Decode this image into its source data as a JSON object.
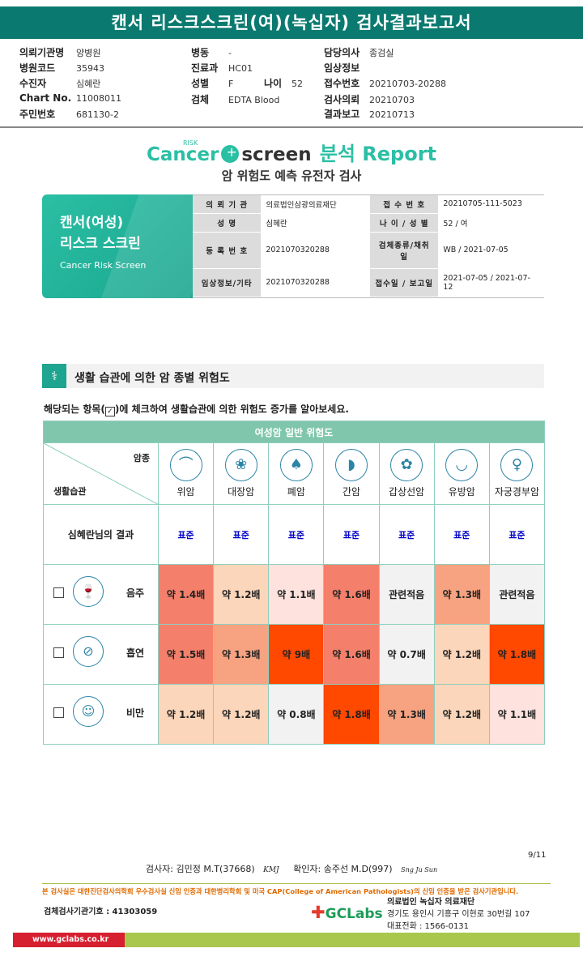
{
  "header": {
    "title": "캔서 리스크스크린(여)(녹십자) 검사결과보고서"
  },
  "info": {
    "col1": [
      {
        "label": "의뢰기관명",
        "value": "양병원"
      },
      {
        "label": "병원코드",
        "value": "35943"
      },
      {
        "label": "수진자",
        "value": "심혜란"
      },
      {
        "label": "Chart No.",
        "value": "11008011"
      },
      {
        "label": "주민번호",
        "value": "681130-2"
      }
    ],
    "col2": [
      {
        "label": "병동",
        "value": "-"
      },
      {
        "label": "진료과",
        "value": "HC01"
      },
      {
        "label": "성별",
        "value": "F"
      },
      {
        "label": "검체",
        "value": "EDTA Blood"
      }
    ],
    "age": {
      "label": "나이",
      "value": "52"
    },
    "col3": [
      {
        "label": "담당의사",
        "value": "종검실"
      },
      {
        "label": "임상정보",
        "value": ""
      },
      {
        "label": "접수번호",
        "value": "20210703-20288"
      },
      {
        "label": "검사의뢰",
        "value": "20210703"
      },
      {
        "label": "결과보고",
        "value": "20210713"
      }
    ]
  },
  "report": {
    "logo_cancer": "Cancer",
    "logo_risk": "RISK",
    "logo_screen": "screen",
    "logo_report": "분석 Report",
    "subtitle": "암 위험도 예측 유전자 검사",
    "card_line1": "캔서(여성)",
    "card_line2": "리스크 스크린",
    "card_line3": "Cancer Risk Screen"
  },
  "patient_table": [
    {
      "k1": "의 뢰 기 관",
      "v1": "의료법인삼광의료재단",
      "k2": "접 수 번 호",
      "v2": "20210705-111-5023"
    },
    {
      "k1": "성          명",
      "v1": "심혜란",
      "k2": "나 이 / 성 별",
      "v2": "52 / 여"
    },
    {
      "k1": "등 록 번 호",
      "v1": "2021070320288",
      "k2": "검체종류/채취일",
      "v2": "WB / 2021-07-05"
    },
    {
      "k1": "임상정보/기타",
      "v1": "2021070320288",
      "k2": "접수일 / 보고일",
      "v2": "2021-07-05 / 2021-07-12"
    }
  ],
  "section": {
    "title": "생활 습관에 의한 암 종별 위험도",
    "instruction_pre": "해당되는 항목(",
    "instruction_check": "✓",
    "instruction_post": ")에 체크하여 생활습관에 의한 위험도 증가를 알아보세요."
  },
  "grid": {
    "header": "여성암 일반 위험도",
    "corner_top": "암종",
    "corner_bottom": "생활습관",
    "cancers": [
      {
        "name": "위암",
        "icon": "stomach-icon",
        "glyph": "⌒"
      },
      {
        "name": "대장암",
        "icon": "colon-icon",
        "glyph": "❀"
      },
      {
        "name": "폐암",
        "icon": "lung-icon",
        "glyph": "♠"
      },
      {
        "name": "간암",
        "icon": "liver-icon",
        "glyph": "◗"
      },
      {
        "name": "갑상선암",
        "icon": "thyroid-icon",
        "glyph": "✿"
      },
      {
        "name": "유방암",
        "icon": "breast-icon",
        "glyph": "◡"
      },
      {
        "name": "자궁경부암",
        "icon": "uterus-icon",
        "glyph": "♀"
      }
    ],
    "result_label": "심혜란님의 결과",
    "results": [
      "표준",
      "표준",
      "표준",
      "표준",
      "표준",
      "표준",
      "표준"
    ],
    "habits": [
      {
        "name": "음주",
        "icon": "alcohol-icon",
        "glyph": "🍷",
        "cells": [
          {
            "text": "약 1.4배",
            "level": "lv4"
          },
          {
            "text": "약 1.2배",
            "level": "lv2"
          },
          {
            "text": "약 1.1배",
            "level": "lv1"
          },
          {
            "text": "약 1.6배",
            "level": "lv4"
          },
          {
            "text": "관련적음",
            "level": "lvn"
          },
          {
            "text": "약 1.3배",
            "level": "lv3"
          },
          {
            "text": "관련적음",
            "level": "lvn"
          }
        ]
      },
      {
        "name": "흡연",
        "icon": "smoking-icon",
        "glyph": "⊘",
        "cells": [
          {
            "text": "약 1.5배",
            "level": "lv4"
          },
          {
            "text": "약 1.3배",
            "level": "lv3"
          },
          {
            "text": "약 9배",
            "level": "lv5"
          },
          {
            "text": "약 1.6배",
            "level": "lv4"
          },
          {
            "text": "약 0.7배",
            "level": "lvn"
          },
          {
            "text": "약 1.2배",
            "level": "lv2"
          },
          {
            "text": "약 1.8배",
            "level": "lv5"
          }
        ]
      },
      {
        "name": "비만",
        "icon": "obesity-icon",
        "glyph": "☺",
        "cells": [
          {
            "text": "약 1.2배",
            "level": "lv2"
          },
          {
            "text": "약 1.2배",
            "level": "lv2"
          },
          {
            "text": "약 0.8배",
            "level": "lvn"
          },
          {
            "text": "약 1.8배",
            "level": "lv5"
          },
          {
            "text": "약 1.3배",
            "level": "lv3"
          },
          {
            "text": "약 1.2배",
            "level": "lv2"
          },
          {
            "text": "약 1.1배",
            "level": "lv1"
          }
        ]
      }
    ]
  },
  "footer": {
    "page": "9/11",
    "examiner": "검사자: 김민정 M.T(37668)",
    "examiner_sign": "KMJ",
    "confirmer": "확인자: 송주선 M.D(997)",
    "confirmer_sign": "Sng Ju Sun",
    "note": "본 검사실은 대한진단검사의학회 우수검사실 신임 인증과 대한병리학회 및 미국 CAP(College of American Pathologists)의 신임 인증을 받은 검사기관입니다.",
    "code": "검체검사기관기호 : 41303059",
    "brand_plus": "✚",
    "brand": "GCLabs",
    "foundation_name": "의료법인 녹십자 의료재단",
    "foundation_addr": "경기도 용인시 기흥구 이현로 30번길 107",
    "foundation_tel": "대표전화 : 1566-0131",
    "website": "www.gclabs.co.kr"
  }
}
